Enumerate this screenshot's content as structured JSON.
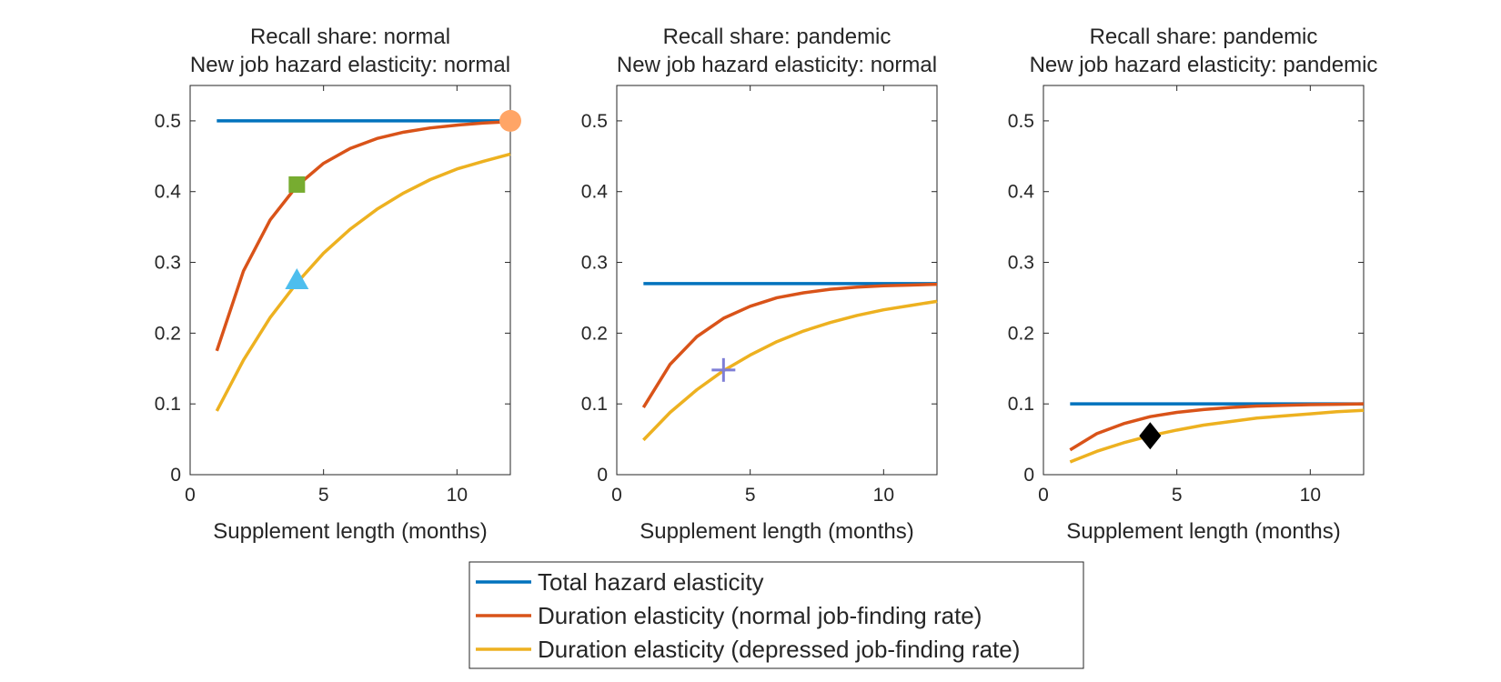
{
  "figure": {
    "colors": {
      "total": "#0072BD",
      "normal": "#D95319",
      "depressed": "#EDB120",
      "axis": "#262626"
    }
  },
  "chart_data": [
    {
      "type": "line",
      "title": [
        "Recall share: normal",
        "New job hazard elasticity: normal"
      ],
      "xlabel": "Supplement length (months)",
      "ylabel": "",
      "xlim": [
        0,
        12
      ],
      "ylim": [
        0,
        0.55
      ],
      "xticks": [
        0,
        5,
        10
      ],
      "xtick_labels": [
        "0",
        "5",
        "10"
      ],
      "yticks": [
        0,
        0.1,
        0.2,
        0.3,
        0.4,
        0.5
      ],
      "ytick_labels": [
        "0",
        "0.1",
        "0.2",
        "0.3",
        "0.4",
        "0.5"
      ],
      "grid": false,
      "x": [
        1,
        2,
        3,
        4,
        5,
        6,
        7,
        8,
        9,
        10,
        11,
        12
      ],
      "series": [
        {
          "name": "Total hazard elasticity",
          "color_key": "total",
          "values": [
            0.5,
            0.5,
            0.5,
            0.5,
            0.5,
            0.5,
            0.5,
            0.5,
            0.5,
            0.5,
            0.5,
            0.5
          ]
        },
        {
          "name": "Duration elasticity (normal job-finding rate)",
          "color_key": "normal",
          "values": [
            0.175,
            0.288,
            0.36,
            0.408,
            0.44,
            0.461,
            0.475,
            0.484,
            0.49,
            0.494,
            0.497,
            0.499
          ]
        },
        {
          "name": "Duration elasticity (depressed job-finding rate)",
          "color_key": "depressed",
          "values": [
            0.09,
            0.162,
            0.222,
            0.271,
            0.313,
            0.347,
            0.375,
            0.398,
            0.417,
            0.432,
            0.443,
            0.453
          ]
        }
      ],
      "markers": [
        {
          "shape": "circle",
          "x": 12,
          "y": 0.5,
          "color": "#FFA566"
        },
        {
          "shape": "square",
          "x": 4,
          "y": 0.41,
          "color": "#77AC30"
        },
        {
          "shape": "triangle",
          "x": 4,
          "y": 0.275,
          "color": "#4DBEEE"
        }
      ]
    },
    {
      "type": "line",
      "title": [
        "Recall share: pandemic",
        "New job hazard elasticity: normal"
      ],
      "xlabel": "Supplement length (months)",
      "ylabel": "",
      "xlim": [
        0,
        12
      ],
      "ylim": [
        0,
        0.55
      ],
      "xticks": [
        0,
        5,
        10
      ],
      "xtick_labels": [
        "0",
        "5",
        "10"
      ],
      "yticks": [
        0,
        0.1,
        0.2,
        0.3,
        0.4,
        0.5
      ],
      "ytick_labels": [
        "0",
        "0.1",
        "0.2",
        "0.3",
        "0.4",
        "0.5"
      ],
      "grid": false,
      "x": [
        1,
        2,
        3,
        4,
        5,
        6,
        7,
        8,
        9,
        10,
        11,
        12
      ],
      "series": [
        {
          "name": "Total hazard elasticity",
          "color_key": "total",
          "values": [
            0.27,
            0.27,
            0.27,
            0.27,
            0.27,
            0.27,
            0.27,
            0.27,
            0.27,
            0.27,
            0.27,
            0.27
          ]
        },
        {
          "name": "Duration elasticity (normal job-finding rate)",
          "color_key": "normal",
          "values": [
            0.095,
            0.156,
            0.195,
            0.221,
            0.238,
            0.25,
            0.257,
            0.262,
            0.265,
            0.267,
            0.268,
            0.269
          ]
        },
        {
          "name": "Duration elasticity (depressed job-finding rate)",
          "color_key": "depressed",
          "values": [
            0.049,
            0.088,
            0.12,
            0.147,
            0.169,
            0.188,
            0.203,
            0.215,
            0.225,
            0.233,
            0.239,
            0.245
          ]
        }
      ],
      "markers": [
        {
          "shape": "plus",
          "x": 4,
          "y": 0.148,
          "color": "#7E7ED6"
        }
      ]
    },
    {
      "type": "line",
      "title": [
        "Recall share: pandemic",
        "New job hazard elasticity: pandemic"
      ],
      "xlabel": "Supplement length (months)",
      "ylabel": "",
      "xlim": [
        0,
        12
      ],
      "ylim": [
        0,
        0.55
      ],
      "xticks": [
        0,
        5,
        10
      ],
      "xtick_labels": [
        "0",
        "5",
        "10"
      ],
      "yticks": [
        0,
        0.1,
        0.2,
        0.3,
        0.4,
        0.5
      ],
      "ytick_labels": [
        "0",
        "0.1",
        "0.2",
        "0.3",
        "0.4",
        "0.5"
      ],
      "grid": false,
      "x": [
        1,
        2,
        3,
        4,
        5,
        6,
        7,
        8,
        9,
        10,
        11,
        12
      ],
      "series": [
        {
          "name": "Total hazard elasticity",
          "color_key": "total",
          "values": [
            0.1,
            0.1,
            0.1,
            0.1,
            0.1,
            0.1,
            0.1,
            0.1,
            0.1,
            0.1,
            0.1,
            0.1
          ]
        },
        {
          "name": "Duration elasticity (normal job-finding rate)",
          "color_key": "normal",
          "values": [
            0.035,
            0.058,
            0.072,
            0.082,
            0.088,
            0.092,
            0.095,
            0.097,
            0.098,
            0.099,
            0.0995,
            0.1
          ]
        },
        {
          "name": "Duration elasticity (depressed job-finding rate)",
          "color_key": "depressed",
          "values": [
            0.018,
            0.033,
            0.045,
            0.055,
            0.063,
            0.07,
            0.075,
            0.08,
            0.083,
            0.086,
            0.089,
            0.091
          ]
        }
      ],
      "markers": [
        {
          "shape": "diamond",
          "x": 4,
          "y": 0.055,
          "color": "#000000"
        }
      ]
    }
  ],
  "legend": {
    "placement": "bottom-center",
    "entries": [
      {
        "label": "Total hazard elasticity",
        "color_key": "total"
      },
      {
        "label": "Duration elasticity (normal job-finding rate)",
        "color_key": "normal"
      },
      {
        "label": "Duration elasticity (depressed job-finding rate)",
        "color_key": "depressed"
      }
    ]
  }
}
